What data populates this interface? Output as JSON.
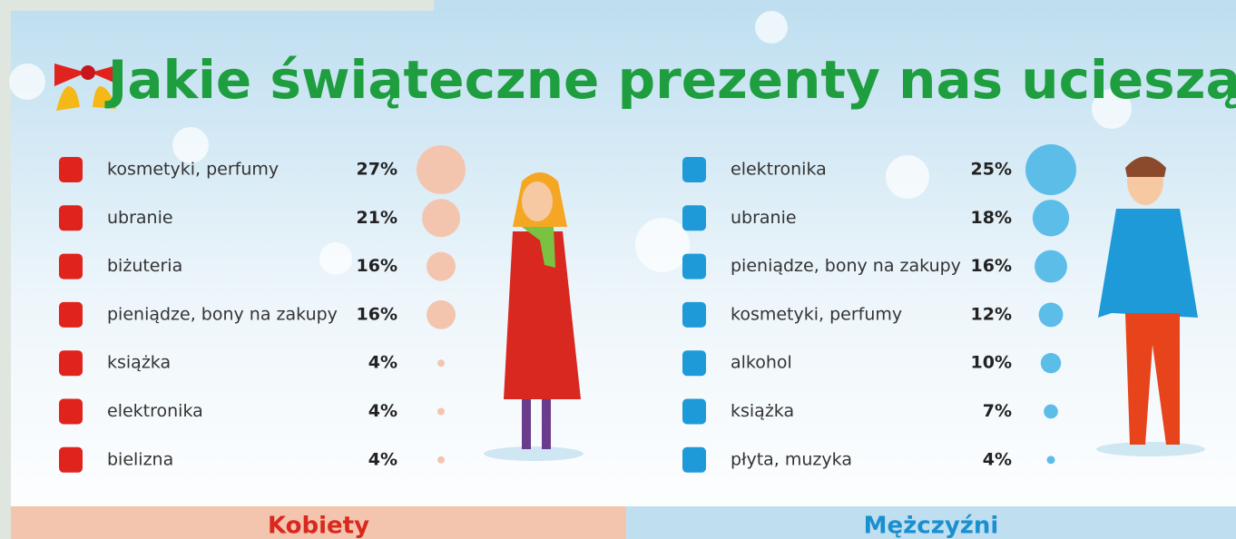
{
  "header": {
    "title": "Jakie świąteczne prezenty nas ucieszą?"
  },
  "chart_data": [
    {
      "type": "dot-list",
      "label": "Kobiety",
      "color": "#f4c5ae",
      "icon_color": "#e0231c",
      "categories": [
        "kosmetyki, perfumy",
        "ubranie",
        "biżuteria",
        "pieniądze, bony na zakupy",
        "książka",
        "elektronika",
        "bielizna"
      ],
      "values": [
        27,
        21,
        16,
        16,
        4,
        4,
        4
      ],
      "value_labels": [
        "27%",
        "21%",
        "16%",
        "16%",
        "4%",
        "4%",
        "4%"
      ]
    },
    {
      "type": "dot-list",
      "label": "Mężczyźni",
      "color": "#5cbde9",
      "icon_color": "#1f9ad8",
      "categories": [
        "elektronika",
        "ubranie",
        "pieniądze, bony na zakupy",
        "kosmetyki, perfumy",
        "alkohol",
        "książka",
        "płyta, muzyka"
      ],
      "values": [
        25,
        18,
        16,
        12,
        10,
        7,
        4
      ],
      "value_labels": [
        "25%",
        "18%",
        "16%",
        "12%",
        "10%",
        "7%",
        "4%"
      ]
    }
  ]
}
